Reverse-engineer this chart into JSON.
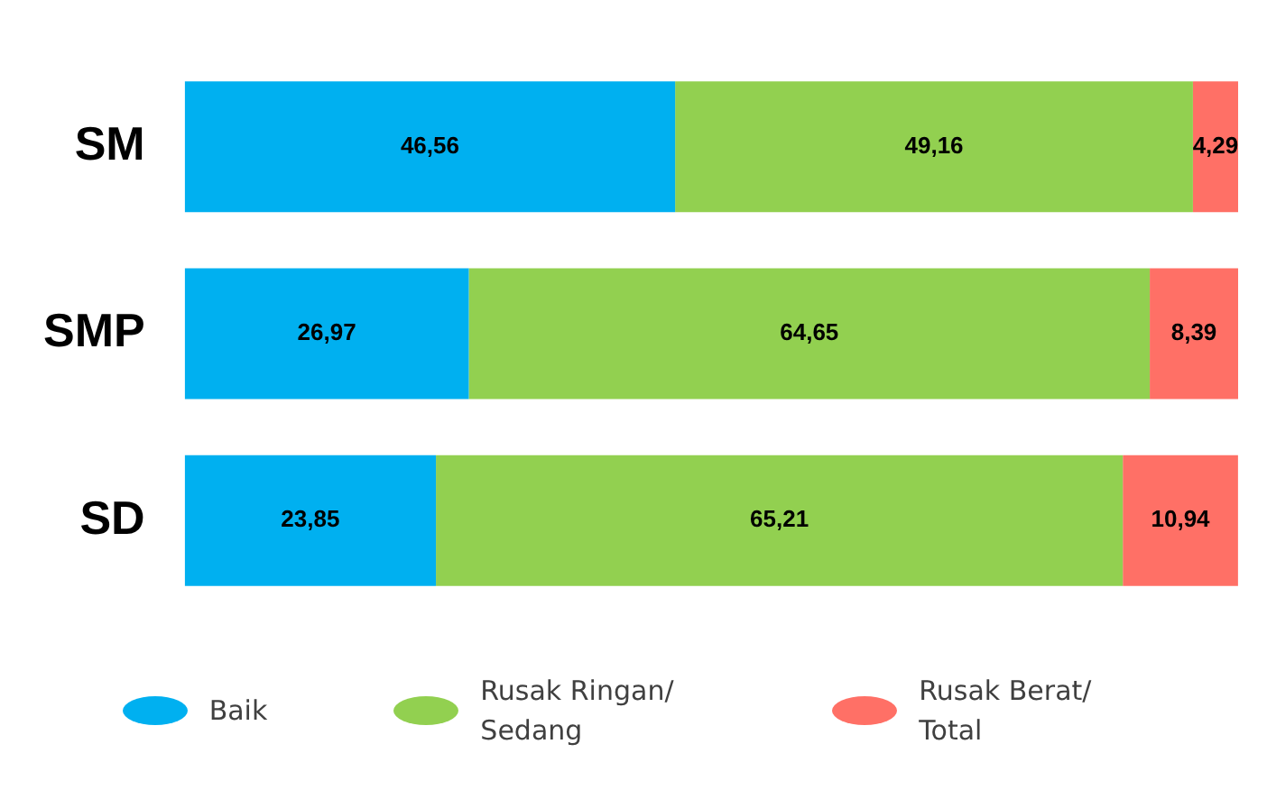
{
  "chart_data": {
    "type": "bar",
    "orientation": "horizontal",
    "stacked": true,
    "categories": [
      "SM",
      "SMP",
      "SD"
    ],
    "series": [
      {
        "name": "Baik",
        "color": "#00b0f0",
        "values": [
          46.56,
          26.97,
          23.85
        ],
        "value_labels": [
          "46,56",
          "26,97",
          "23,85"
        ]
      },
      {
        "name": "Rusak Ringan/ Sedang",
        "color": "#92d050",
        "values": [
          49.16,
          64.65,
          65.21
        ],
        "value_labels": [
          "49,16",
          "64,65",
          "65,21"
        ]
      },
      {
        "name": "Rusak Berat/ Total",
        "color": "#ff7066",
        "values": [
          4.29,
          8.39,
          10.94
        ],
        "value_labels": [
          "4,29",
          "8,39",
          "10,94"
        ]
      }
    ],
    "legend": "bottom"
  }
}
